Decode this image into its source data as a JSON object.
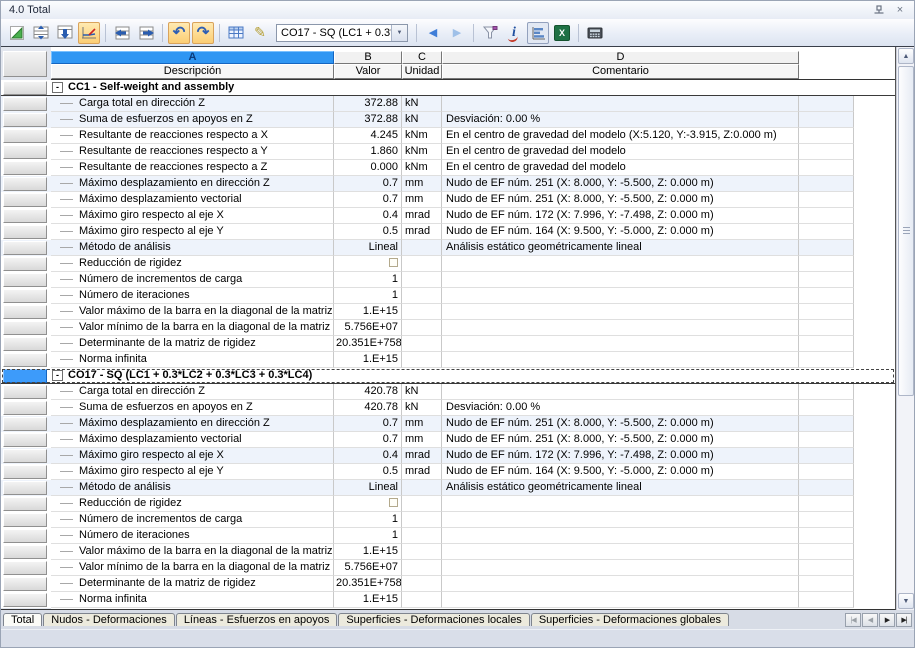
{
  "window": {
    "title": "4.0 Total"
  },
  "icons": {
    "close": "×",
    "combo_arrow": "▼",
    "undo_glyph": "↶",
    "redo_glyph": "↷",
    "pencil_glyph": "✎",
    "nav_prev": "◀",
    "nav_next": "▶",
    "scroll_up": "▲",
    "scroll_down": "▼",
    "collapse_glyph": "-",
    "excel_label": "X",
    "info_label": "i",
    "toolbar_icon_names": [
      "calculate-icon",
      "table-insert-rows-icon",
      "table-row-down-icon",
      "result-diagram-icon",
      "table-prev-icon",
      "table-next-icon",
      "undo-icon",
      "redo-icon",
      "table-view-icon",
      "edit-pencil-icon",
      "case-prev-icon",
      "case-next-icon",
      "filter-icon",
      "info-icon",
      "chart-icon",
      "excel-export-icon",
      "calculator-icon"
    ]
  },
  "toolbar": {
    "combo_value": "CO17 - SQ  (LC1 + 0.3*"
  },
  "table": {
    "col_letters": [
      "A",
      "B",
      "C",
      "D"
    ],
    "col_names": [
      "Descripción",
      "Valor",
      "Unidad",
      "Comentario"
    ],
    "sections": [
      {
        "header": "CC1 - Self-weight and assembly",
        "selected": false,
        "rows": [
          {
            "desc": "Carga total en dirección Z",
            "valor": "372.88",
            "unidad": "kN",
            "comentario": "",
            "tint": true
          },
          {
            "desc": "Suma de esfuerzos en apoyos en Z",
            "valor": "372.88",
            "unidad": "kN",
            "comentario": "Desviación:  0.00 %",
            "tint": true
          },
          {
            "desc": "Resultante de reacciones respecto a X",
            "valor": "4.245",
            "unidad": "kNm",
            "comentario": "En el centro de gravedad del modelo (X:5.120, Y:-3.915, Z:0.000 m)",
            "tint": false
          },
          {
            "desc": "Resultante de reacciones respecto a Y",
            "valor": "1.860",
            "unidad": "kNm",
            "comentario": "En el centro de gravedad del modelo",
            "tint": false
          },
          {
            "desc": "Resultante de reacciones respecto a Z",
            "valor": "0.000",
            "unidad": "kNm",
            "comentario": "En el centro de gravedad del modelo",
            "tint": false
          },
          {
            "desc": "Máximo desplazamiento en dirección Z",
            "valor": "0.7",
            "unidad": "mm",
            "comentario": "Nudo de EF núm. 251  (X: 8.000, Y: -5.500, Z: 0.000 m)",
            "tint": true
          },
          {
            "desc": "Máximo desplazamiento vectorial",
            "valor": "0.7",
            "unidad": "mm",
            "comentario": "Nudo de EF núm. 251  (X: 8.000, Y: -5.500, Z: 0.000 m)",
            "tint": false
          },
          {
            "desc": "Máximo giro respecto al eje X",
            "valor": "0.4",
            "unidad": "mrad",
            "comentario": "Nudo de EF núm. 172  (X: 7.996, Y: -7.498, Z: 0.000 m)",
            "tint": false
          },
          {
            "desc": "Máximo giro respecto al eje Y",
            "valor": "0.5",
            "unidad": "mrad",
            "comentario": "Nudo de EF núm. 164  (X: 9.500, Y: -5.000, Z: 0.000 m)",
            "tint": false
          },
          {
            "desc": "Método de análisis",
            "valor": "Lineal",
            "unidad": "",
            "comentario": "Análisis estático geométricamente lineal",
            "tint": true
          },
          {
            "desc": "Reducción de rigidez",
            "valor": "",
            "unidad": "",
            "comentario": "",
            "tint": false,
            "checkbox": true
          },
          {
            "desc": "Número de incrementos de carga",
            "valor": "1",
            "unidad": "",
            "comentario": "",
            "tint": false
          },
          {
            "desc": "Número de iteraciones",
            "valor": "1",
            "unidad": "",
            "comentario": "",
            "tint": false
          },
          {
            "desc": "Valor máximo de la barra en la diagonal de la matriz de",
            "valor": "1.E+15",
            "unidad": "",
            "comentario": "",
            "tint": false
          },
          {
            "desc": "Valor mínimo de la barra en la diagonal de la matriz de",
            "valor": "5.756E+07",
            "unidad": "",
            "comentario": "",
            "tint": false
          },
          {
            "desc": "Determinante de la matriz de rigidez",
            "valor": "20.351E+758",
            "unidad": "",
            "comentario": "",
            "tint": false,
            "clip": true
          },
          {
            "desc": "Norma infinita",
            "valor": "1.E+15",
            "unidad": "",
            "comentario": "",
            "tint": false
          }
        ]
      },
      {
        "header": "CO17 - SQ  (LC1 + 0.3*LC2 + 0.3*LC3 + 0.3*LC4)",
        "selected": true,
        "rows": [
          {
            "desc": "Carga total en dirección Z",
            "valor": "420.78",
            "unidad": "kN",
            "comentario": "",
            "tint": false
          },
          {
            "desc": "Suma de esfuerzos en apoyos en Z",
            "valor": "420.78",
            "unidad": "kN",
            "comentario": "Desviación:  0.00 %",
            "tint": false
          },
          {
            "desc": "Máximo desplazamiento en dirección Z",
            "valor": "0.7",
            "unidad": "mm",
            "comentario": "Nudo de EF núm. 251  (X: 8.000, Y: -5.500, Z: 0.000 m)",
            "tint": true
          },
          {
            "desc": "Máximo desplazamiento vectorial",
            "valor": "0.7",
            "unidad": "mm",
            "comentario": "Nudo de EF núm. 251  (X: 8.000, Y: -5.500, Z: 0.000 m)",
            "tint": false
          },
          {
            "desc": "Máximo giro respecto al eje X",
            "valor": "0.4",
            "unidad": "mrad",
            "comentario": "Nudo de EF núm. 172  (X: 7.996, Y: -7.498, Z: 0.000 m)",
            "tint": true
          },
          {
            "desc": "Máximo giro respecto al eje Y",
            "valor": "0.5",
            "unidad": "mrad",
            "comentario": "Nudo de EF núm. 164  (X: 9.500, Y: -5.000, Z: 0.000 m)",
            "tint": false
          },
          {
            "desc": "Método de análisis",
            "valor": "Lineal",
            "unidad": "",
            "comentario": "Análisis estático geométricamente lineal",
            "tint": true
          },
          {
            "desc": "Reducción de rigidez",
            "valor": "",
            "unidad": "",
            "comentario": "",
            "tint": false,
            "checkbox": true
          },
          {
            "desc": "Número de incrementos de carga",
            "valor": "1",
            "unidad": "",
            "comentario": "",
            "tint": false
          },
          {
            "desc": "Número de iteraciones",
            "valor": "1",
            "unidad": "",
            "comentario": "",
            "tint": false
          },
          {
            "desc": "Valor máximo de la barra en la diagonal de la matriz de",
            "valor": "1.E+15",
            "unidad": "",
            "comentario": "",
            "tint": false
          },
          {
            "desc": "Valor mínimo de la barra en la diagonal de la matriz de",
            "valor": "5.756E+07",
            "unidad": "",
            "comentario": "",
            "tint": false
          },
          {
            "desc": "Determinante de la matriz de rigidez",
            "valor": "20.351E+758",
            "unidad": "",
            "comentario": "",
            "tint": false,
            "clip": true
          },
          {
            "desc": "Norma infinita",
            "valor": "1.E+15",
            "unidad": "",
            "comentario": "",
            "tint": false
          }
        ]
      }
    ]
  },
  "tabs": {
    "items": [
      {
        "label": "Total",
        "active": true
      },
      {
        "label": "Nudos - Deformaciones",
        "active": false
      },
      {
        "label": "Líneas - Esfuerzos en apoyos",
        "active": false
      },
      {
        "label": "Superficies - Deformaciones locales",
        "active": false
      },
      {
        "label": "Superficies - Deformaciones globales",
        "active": false
      }
    ],
    "nav": [
      {
        "glyph": "|◀",
        "disabled": true
      },
      {
        "glyph": "◀",
        "disabled": true
      },
      {
        "glyph": "▶",
        "disabled": false
      },
      {
        "glyph": "▶|",
        "disabled": false
      }
    ]
  }
}
